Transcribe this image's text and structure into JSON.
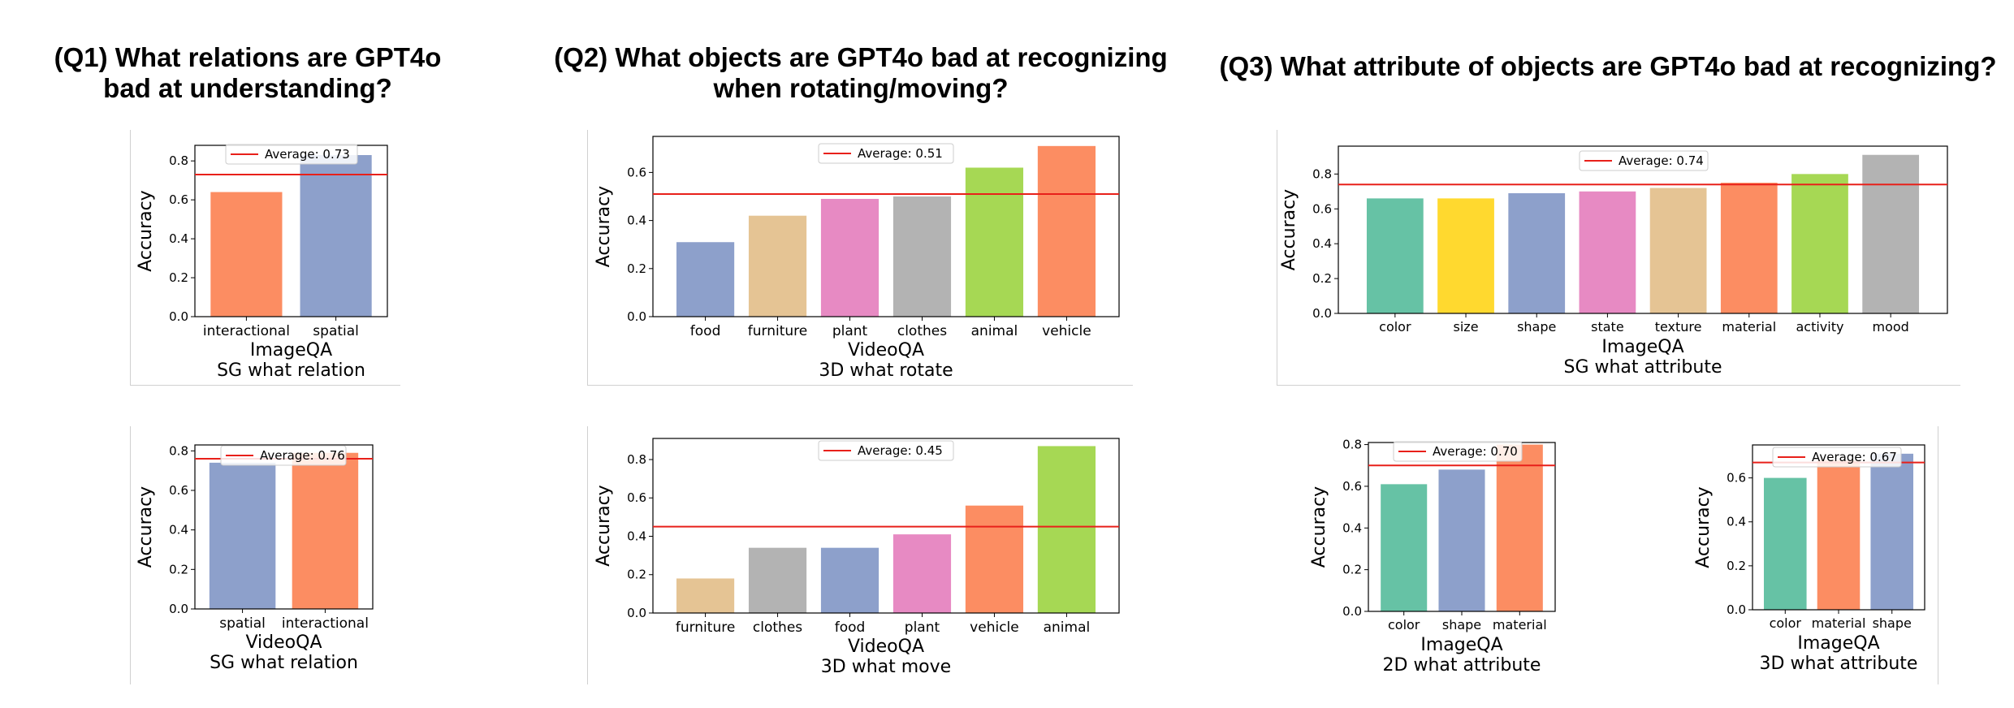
{
  "titles": {
    "q1": [
      "(Q1) What relations are GPT4o",
      "bad at understanding?"
    ],
    "q2": [
      "(Q2) What objects are GPT4o bad at recognizing",
      "when rotating/moving?"
    ],
    "q3": [
      "(Q3) What attribute of objects are GPT4o bad at recognizing?"
    ]
  },
  "chart_data": [
    {
      "type": "bar",
      "ylabel": "Accuracy",
      "xlabel": "ImageQA",
      "subtitle": "SG what relation",
      "categories": [
        "interactional",
        "spatial"
      ],
      "values": [
        0.64,
        0.83
      ],
      "colors": [
        "#fc8d62",
        "#8da0cb"
      ],
      "average": 0.73,
      "legend": "Average: 0.73",
      "yticks": [
        "0.0",
        "0.2",
        "0.4",
        "0.6",
        "0.8"
      ],
      "ylim": [
        0,
        0.88
      ]
    },
    {
      "type": "bar",
      "ylabel": "Accuracy",
      "xlabel": "VideoQA",
      "subtitle": "SG what relation",
      "categories": [
        "spatial",
        "interactional"
      ],
      "values": [
        0.74,
        0.79
      ],
      "colors": [
        "#8da0cb",
        "#fc8d62"
      ],
      "average": 0.76,
      "legend": "Average: 0.76",
      "yticks": [
        "0.0",
        "0.2",
        "0.4",
        "0.6",
        "0.8"
      ],
      "ylim": [
        0,
        0.83
      ]
    },
    {
      "type": "bar",
      "ylabel": "Accuracy",
      "xlabel": "VideoQA",
      "subtitle": "3D what rotate",
      "categories": [
        "food",
        "furniture",
        "plant",
        "clothes",
        "animal",
        "vehicle"
      ],
      "values": [
        0.31,
        0.42,
        0.49,
        0.5,
        0.62,
        0.71
      ],
      "colors": [
        "#8da0cb",
        "#e5c494",
        "#e78ac3",
        "#b3b3b3",
        "#a6d854",
        "#fc8d62"
      ],
      "average": 0.51,
      "legend": "Average: 0.51",
      "yticks": [
        "0.0",
        "0.2",
        "0.4",
        "0.6"
      ],
      "ylim": [
        0,
        0.75
      ]
    },
    {
      "type": "bar",
      "ylabel": "Accuracy",
      "xlabel": "VideoQA",
      "subtitle": "3D what move",
      "categories": [
        "furniture",
        "clothes",
        "food",
        "plant",
        "vehicle",
        "animal"
      ],
      "values": [
        0.18,
        0.34,
        0.34,
        0.41,
        0.56,
        0.87
      ],
      "colors": [
        "#e5c494",
        "#b3b3b3",
        "#8da0cb",
        "#e78ac3",
        "#fc8d62",
        "#a6d854"
      ],
      "average": 0.45,
      "legend": "Average: 0.45",
      "yticks": [
        "0.0",
        "0.2",
        "0.4",
        "0.6",
        "0.8"
      ],
      "ylim": [
        0,
        0.91
      ]
    },
    {
      "type": "bar",
      "ylabel": "Accuracy",
      "xlabel": "ImageQA",
      "subtitle": "SG what attribute",
      "categories": [
        "color",
        "size",
        "shape",
        "state",
        "texture",
        "material",
        "activity",
        "mood"
      ],
      "values": [
        0.66,
        0.66,
        0.69,
        0.7,
        0.72,
        0.75,
        0.8,
        0.91
      ],
      "colors": [
        "#66c2a5",
        "#ffd92f",
        "#8da0cb",
        "#e78ac3",
        "#e5c494",
        "#fc8d62",
        "#a6d854",
        "#b3b3b3"
      ],
      "average": 0.74,
      "legend": "Average: 0.74",
      "yticks": [
        "0.0",
        "0.2",
        "0.4",
        "0.6",
        "0.8"
      ],
      "ylim": [
        0,
        0.96
      ]
    },
    {
      "type": "bar",
      "ylabel": "Accuracy",
      "xlabel": "ImageQA",
      "subtitle": "2D what attribute",
      "categories": [
        "color",
        "shape",
        "material"
      ],
      "values": [
        0.61,
        0.68,
        0.8
      ],
      "colors": [
        "#66c2a5",
        "#8da0cb",
        "#fc8d62"
      ],
      "average": 0.7,
      "legend": "Average: 0.70",
      "yticks": [
        "0.0",
        "0.2",
        "0.4",
        "0.6",
        "0.8"
      ],
      "ylim": [
        0,
        0.81
      ]
    },
    {
      "type": "bar",
      "ylabel": "Accuracy",
      "xlabel": "ImageQA",
      "subtitle": "3D what attribute",
      "categories": [
        "color",
        "material",
        "shape"
      ],
      "values": [
        0.6,
        0.68,
        0.71
      ],
      "colors": [
        "#66c2a5",
        "#fc8d62",
        "#8da0cb"
      ],
      "average": 0.67,
      "legend": "Average: 0.67",
      "yticks": [
        "0.0",
        "0.2",
        "0.4",
        "0.6"
      ],
      "ylim": [
        0,
        0.75
      ]
    }
  ]
}
